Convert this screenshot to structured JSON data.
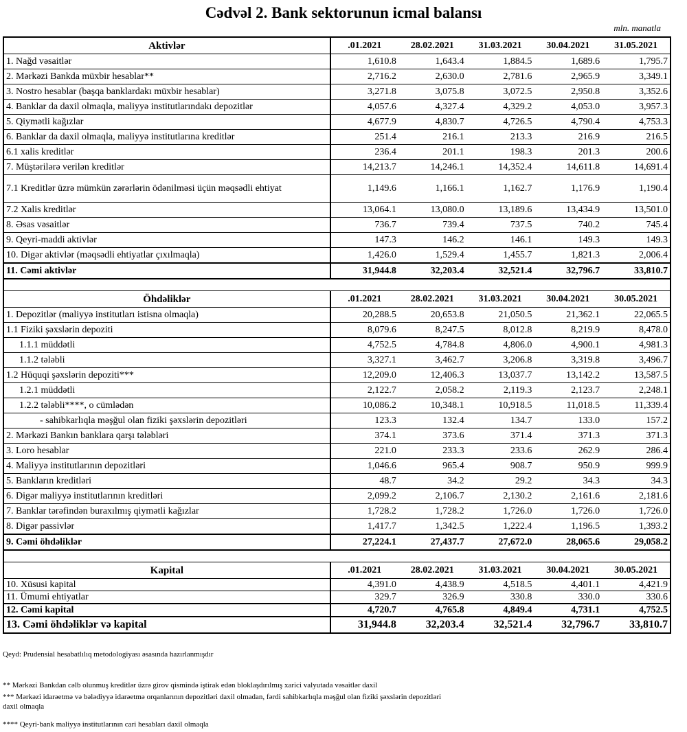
{
  "title": "Cədvəl 2. Bank sektorunun icmal balansı",
  "unit": "mln. manatla",
  "sections": [
    {
      "header": "Aktivlər",
      "dates": [
        ".01.2021",
        "28.02.2021",
        "31.03.2021",
        "30.04.2021",
        "31.05.2021"
      ],
      "rows": [
        {
          "label": " 1. Nağd vəsaitlər",
          "values": [
            "1,610.8",
            "1,643.4",
            "1,884.5",
            "1,689.6",
            "1,795.7"
          ]
        },
        {
          "label": "2. Mərkəzi Bankda müxbir hesablar**",
          "values": [
            "2,716.2",
            "2,630.0",
            "2,781.6",
            "2,965.9",
            "3,349.1"
          ]
        },
        {
          "label": "3. Nostro hesablar (başqa banklardakı müxbir hesablar)",
          "values": [
            "3,271.8",
            "3,075.8",
            "3,072.5",
            "2,950.8",
            "3,352.6"
          ]
        },
        {
          "label": "4. Banklar da daxil olmaqla, maliyyə institutlarındakı depozitlər",
          "values": [
            "4,057.6",
            "4,327.4",
            "4,329.2",
            "4,053.0",
            "3,957.3"
          ]
        },
        {
          "label": "5. Qiymətli kağızlar",
          "values": [
            "4,677.9",
            "4,830.7",
            "4,726.5",
            "4,790.4",
            "4,753.3"
          ]
        },
        {
          "label": "6. Banklar da daxil olmaqla, maliyyə institutlarına kreditlər",
          "values": [
            "251.4",
            "216.1",
            "213.3",
            "216.9",
            "216.5"
          ]
        },
        {
          "label": "6.1 xalis kreditlər",
          "values": [
            "236.4",
            "201.1",
            "198.3",
            "201.3",
            "200.6"
          ]
        },
        {
          "label": "7. Müştərilərə verilən kreditlər",
          "values": [
            "14,213.7",
            "14,246.1",
            "14,352.4",
            "14,611.8",
            "14,691.4"
          ]
        },
        {
          "label": "7.1 Kreditlər üzrə mümkün zərərlərin ödənilməsi üçün məqsədli ehtiyat",
          "values": [
            "1,149.6",
            "1,166.1",
            "1,162.7",
            "1,176.9",
            "1,190.4"
          ],
          "tall": true
        },
        {
          "label": "7.2 Xalis kreditlər",
          "values": [
            "13,064.1",
            "13,080.0",
            "13,189.6",
            "13,434.9",
            "13,501.0"
          ]
        },
        {
          "label": "8.  Əsas vəsaitlər",
          "values": [
            "736.7",
            "739.4",
            "737.5",
            "740.2",
            "745.4"
          ]
        },
        {
          "label": "9. Qeyri-maddi aktivlər",
          "values": [
            "147.3",
            "146.2",
            "146.1",
            "149.3",
            "149.3"
          ]
        },
        {
          "label": "10. Digər aktivlər (məqsədli ehtiyatlar çıxılmaqla)",
          "values": [
            "1,426.0",
            "1,529.4",
            "1,455.7",
            "1,821.3",
            "2,006.4"
          ]
        },
        {
          "label": "11. Cəmi aktivlər",
          "values": [
            "31,944.8",
            "32,203.4",
            "32,521.4",
            "32,796.7",
            "33,810.7"
          ],
          "bold": true
        }
      ]
    },
    {
      "header": "Öhdəliklər",
      "dates": [
        ".01.2021",
        "28.02.2021",
        "31.03.2021",
        "30.04.2021",
        "30.05.2021"
      ],
      "rows": [
        {
          "label": " 1. Depozitlər (maliyyə institutları istisna olmaqla)",
          "values": [
            "20,288.5",
            "20,653.8",
            "21,050.5",
            "21,362.1",
            "22,065.5"
          ]
        },
        {
          "label": "1.1 Fiziki şəxslərin depoziti",
          "values": [
            "8,079.6",
            "8,247.5",
            "8,012.8",
            "8,219.9",
            "8,478.0"
          ]
        },
        {
          "label": "1.1.1 müddətli",
          "values": [
            "4,752.5",
            "4,784.8",
            "4,806.0",
            "4,900.1",
            "4,981.3"
          ],
          "indent": 1
        },
        {
          "label": "1.1.2 tələbli",
          "values": [
            "3,327.1",
            "3,462.7",
            "3,206.8",
            "3,319.8",
            "3,496.7"
          ],
          "indent": 1
        },
        {
          "label": "1.2 Hüquqi şəxslərin depoziti***",
          "values": [
            "12,209.0",
            "12,406.3",
            "13,037.7",
            "13,142.2",
            "13,587.5"
          ]
        },
        {
          "label": "1.2.1 müddətli",
          "values": [
            "2,122.7",
            "2,058.2",
            "2,119.3",
            "2,123.7",
            "2,248.1"
          ],
          "indent": 1
        },
        {
          "label": "1.2.2 tələbli****, o cümlədən",
          "values": [
            "10,086.2",
            "10,348.1",
            "10,918.5",
            "11,018.5",
            "11,339.4"
          ],
          "indent": 1
        },
        {
          "label": "- sahibkarlıqla məşğul olan fiziki şəxslərin depozitləri",
          "values": [
            "123.3",
            "132.4",
            "134.7",
            "133.0",
            "157.2"
          ],
          "indent": 2
        },
        {
          "label": "2. Mərkəzi Bankın banklara qarşı tələbləri",
          "values": [
            "374.1",
            "373.6",
            "371.4",
            "371.3",
            "371.3"
          ]
        },
        {
          "label": "3. Loro hesablar",
          "values": [
            "221.0",
            "233.3",
            "233.6",
            "262.9",
            "286.4"
          ]
        },
        {
          "label": "4. Maliyyə institutlarının  depozitləri",
          "values": [
            "1,046.6",
            "965.4",
            "908.7",
            "950.9",
            "999.9"
          ]
        },
        {
          "label": "5. Bankların kreditləri",
          "values": [
            "48.7",
            "34.2",
            "29.2",
            "34.3",
            "34.3"
          ]
        },
        {
          "label": "6. Digər maliyyə institutlarının kreditləri",
          "values": [
            "2,099.2",
            "2,106.7",
            "2,130.2",
            "2,161.6",
            "2,181.6"
          ]
        },
        {
          "label": "7. Banklar tərəfindən buraxılmış qiymətli kağızlar",
          "values": [
            "1,728.2",
            "1,728.2",
            "1,726.0",
            "1,726.0",
            "1,726.0"
          ]
        },
        {
          "label": "8. Digər passivlər",
          "values": [
            "1,417.7",
            "1,342.5",
            "1,222.4",
            "1,196.5",
            "1,393.2"
          ]
        },
        {
          "label": " 9. Cəmi öhdəliklər",
          "values": [
            "27,224.1",
            "27,437.7",
            "27,672.0",
            "28,065.6",
            "29,058.2"
          ],
          "bold": true
        }
      ]
    },
    {
      "header": "Kapital",
      "dates": [
        ".01.2021",
        "28.02.2021",
        "31.03.2021",
        "30.04.2021",
        "30.05.2021"
      ],
      "rows": [
        {
          "label": "10. Xüsusi kapital",
          "values": [
            "4,391.0",
            "4,438.9",
            "4,518.5",
            "4,401.1",
            "4,421.9"
          ],
          "kap": true
        },
        {
          "label": "11. Ümumi ehtiyatlar",
          "values": [
            "329.7",
            "326.9",
            "330.8",
            "330.0",
            "330.6"
          ],
          "kap": true
        },
        {
          "label": "12. Cəmi kapital",
          "values": [
            "4,720.7",
            "4,765.8",
            "4,849.4",
            "4,731.1",
            "4,752.5"
          ],
          "kap": true,
          "bold": true
        },
        {
          "label": "13. Cəmi öhdəliklər və kapital",
          "values": [
            "31,944.8",
            "32,203.4",
            "32,521.4",
            "32,796.7",
            "33,810.7"
          ],
          "bold": true,
          "big": true
        }
      ]
    }
  ],
  "notes": {
    "qeyd": "Qeyd: Prudensial hesabatlılıq metodologiyası əsasında hazırlanmışdır",
    "n2": "** Mərkəzi Bankdan cəlb olunmuş kreditlər üzrə girov qismində iştirak edən bloklaşdırılmış xarici valyutada vəsaitlər daxil",
    "n3": "*** Mərkəzi idarəetmə və bələdiyyə idarəetmə orqanlarının depozitləri daxil olmadan, fərdi sahibkarlıqla məşğul olan fiziki şəxslərin depozitləri daxil olmaqla",
    "n4": "**** Qeyri-bank maliyyə institutlarının cari hesabları daxil olmaqla"
  }
}
